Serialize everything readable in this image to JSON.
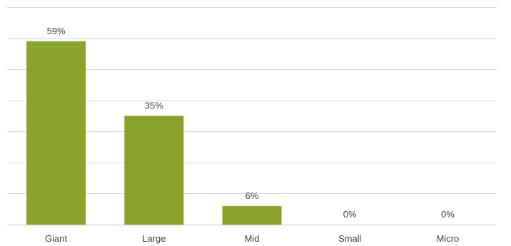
{
  "chart_data": {
    "type": "bar",
    "title": "",
    "xlabel": "",
    "ylabel": "",
    "categories": [
      "Giant",
      "Large",
      "Mid",
      "Small",
      "Micro"
    ],
    "values": [
      59,
      35,
      6,
      0,
      0
    ],
    "value_labels": [
      "59%",
      "35%",
      "6%",
      "0%",
      "0%"
    ],
    "unit": "%",
    "ylim": [
      0,
      70
    ],
    "grid": true,
    "legend": "none",
    "bar_color": "#8ba32b"
  }
}
